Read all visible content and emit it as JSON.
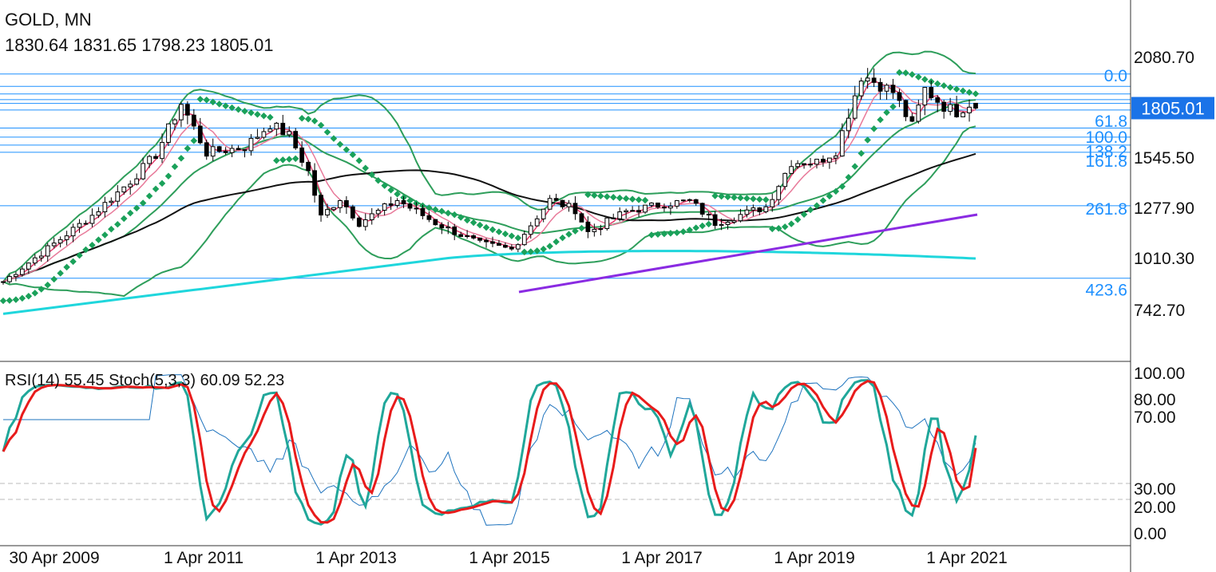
{
  "header": {
    "symbol": "GOLD, MN",
    "ohlc": "1830.64 1831.65 1798.23 1805.01"
  },
  "colors": {
    "bull_bear": "#000000",
    "bb": "#2e9e5b",
    "sar": "#1aa15a",
    "ma_fast": "#e23b6a",
    "ma_mid": "#e87a9a",
    "ma50": "#111111",
    "ma200": "#1fd6dc",
    "trend": "#8a2be2",
    "fib": "#1e90ff",
    "rsi": "#1e73be",
    "stoch_k": "#20a79a",
    "stoch_d": "#e81b1b",
    "price_tag": "#1a73e8"
  },
  "price_panel": {
    "current_price": "1805.01",
    "price_labels": [
      "2080.70",
      "1545.50",
      "1277.90",
      "1010.30",
      "742.70"
    ],
    "fib_labels": [
      {
        "text": "0.0",
        "price": 1980
      },
      {
        "text": "61.8",
        "price": 1740
      },
      {
        "text": "100.0",
        "price": 1655
      },
      {
        "text": "138.2",
        "price": 1580
      },
      {
        "text": "161.8",
        "price": 1530
      },
      {
        "text": "261.8",
        "price": 1277
      },
      {
        "text": "423.6",
        "price": 850
      }
    ],
    "fib_lines": [
      1985,
      1920,
      1880,
      1850,
      1830,
      1795,
      1700,
      1652,
      1610,
      1572,
      1290,
      908
    ]
  },
  "indicator_panel": {
    "title": "RSI(14) 55.45 Stoch(5,3,3) 60.09 52.23",
    "levels": [
      "100.00",
      "80.00",
      "70.00",
      "30.00",
      "20.00",
      "0.00"
    ]
  },
  "chart_data": {
    "type": "candlestick",
    "title": "GOLD, MN",
    "timeframe": "monthly",
    "x_tick_labels": [
      "30 Apr 2009",
      "1 Apr 2011",
      "1 Apr 2013",
      "1 Apr 2015",
      "1 Apr 2017",
      "1 Apr 2019",
      "1 Apr 2021"
    ],
    "y_range": [
      550,
      2250
    ],
    "close_anchors": [
      [
        "2009-04",
        890
      ],
      [
        "2009-10",
        1040
      ],
      [
        "2010-06",
        1240
      ],
      [
        "2010-12",
        1420
      ],
      [
        "2011-04",
        1560
      ],
      [
        "2011-08",
        1830
      ],
      [
        "2011-12",
        1570
      ],
      [
        "2012-06",
        1600
      ],
      [
        "2012-10",
        1720
      ],
      [
        "2013-01",
        1660
      ],
      [
        "2013-04",
        1470
      ],
      [
        "2013-06",
        1230
      ],
      [
        "2013-09",
        1330
      ],
      [
        "2013-12",
        1200
      ],
      [
        "2014-06",
        1320
      ],
      [
        "2014-12",
        1200
      ],
      [
        "2015-07",
        1090
      ],
      [
        "2015-12",
        1060
      ],
      [
        "2016-06",
        1320
      ],
      [
        "2016-10",
        1270
      ],
      [
        "2016-12",
        1150
      ],
      [
        "2017-06",
        1260
      ],
      [
        "2017-12",
        1300
      ],
      [
        "2018-04",
        1315
      ],
      [
        "2018-08",
        1200
      ],
      [
        "2019-04",
        1285
      ],
      [
        "2019-08",
        1520
      ],
      [
        "2019-12",
        1520
      ],
      [
        "2020-03",
        1580
      ],
      [
        "2020-07",
        1975
      ],
      [
        "2020-08",
        1965
      ],
      [
        "2020-12",
        1890
      ],
      [
        "2021-03",
        1710
      ],
      [
        "2021-05",
        1905
      ],
      [
        "2021-08",
        1815
      ],
      [
        "2021-10",
        1785
      ],
      [
        "2021-12",
        1830
      ],
      [
        "2022-01",
        1805
      ]
    ],
    "last_candle": {
      "open": 1830.64,
      "high": 1831.65,
      "low": 1798.23,
      "close": 1805.01
    },
    "rsi": {
      "period": 14,
      "last": 55.45
    },
    "stochastic": {
      "params": "5,3,3",
      "k": 60.09,
      "d": 52.23
    },
    "indicator_y_range": [
      0,
      100
    ]
  }
}
